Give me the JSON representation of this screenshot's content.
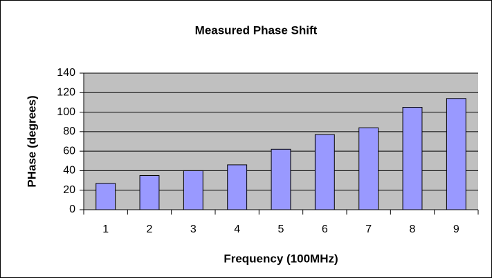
{
  "chart_data": {
    "type": "bar",
    "title": "Measured Phase Shift",
    "x_label": "Frequency (100MHz)",
    "y_label": "PHase (degrees)",
    "categories": [
      "1",
      "2",
      "3",
      "4",
      "5",
      "6",
      "7",
      "8",
      "9"
    ],
    "values": [
      27,
      35,
      40,
      46,
      62,
      77,
      84,
      105,
      114
    ],
    "color": "#9999ff",
    "ylim": [
      0,
      140
    ],
    "yticks": [
      0,
      20,
      40,
      60,
      80,
      100,
      120,
      140
    ],
    "grid": true
  }
}
